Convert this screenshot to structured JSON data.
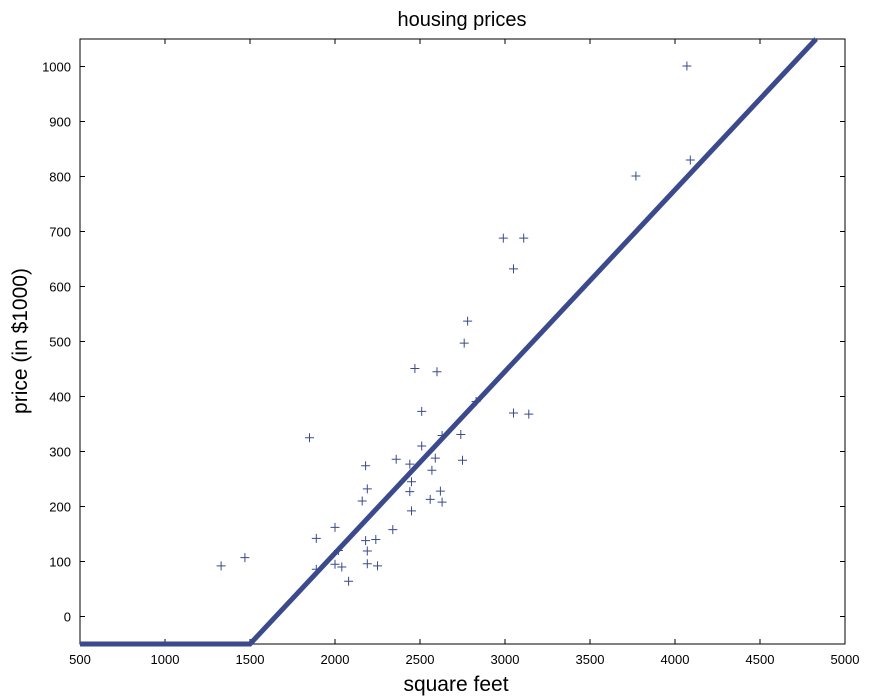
{
  "chart_data": {
    "type": "scatter",
    "title": "housing prices",
    "xlabel": "square feet",
    "ylabel": "price (in $1000)",
    "xlim": [
      500,
      5000
    ],
    "ylim": [
      -50,
      1050
    ],
    "xticks": [
      500,
      1000,
      1500,
      2000,
      2500,
      3000,
      3500,
      4000,
      4500,
      5000
    ],
    "yticks": [
      0,
      100,
      200,
      300,
      400,
      500,
      600,
      700,
      800,
      900,
      1000
    ],
    "grid": false,
    "colors": {
      "series": "#3a4a8c"
    },
    "series": [
      {
        "type": "scatter",
        "marker": "+",
        "points": [
          [
            1330,
            92
          ],
          [
            1470,
            107
          ],
          [
            1850,
            325
          ],
          [
            1890,
            142
          ],
          [
            1890,
            86
          ],
          [
            2000,
            162
          ],
          [
            2000,
            95
          ],
          [
            2020,
            120
          ],
          [
            2040,
            90
          ],
          [
            2080,
            64
          ],
          [
            2160,
            210
          ],
          [
            2180,
            274
          ],
          [
            2190,
            232
          ],
          [
            2180,
            138
          ],
          [
            2190,
            119
          ],
          [
            2190,
            96
          ],
          [
            2240,
            140
          ],
          [
            2250,
            92
          ],
          [
            2340,
            158
          ],
          [
            2360,
            286
          ],
          [
            2440,
            277
          ],
          [
            2440,
            227
          ],
          [
            2450,
            245
          ],
          [
            2450,
            192
          ],
          [
            2470,
            451
          ],
          [
            2510,
            310
          ],
          [
            2510,
            373
          ],
          [
            2560,
            213
          ],
          [
            2570,
            266
          ],
          [
            2590,
            288
          ],
          [
            2600,
            445
          ],
          [
            2620,
            228
          ],
          [
            2630,
            208
          ],
          [
            2630,
            329
          ],
          [
            2740,
            331
          ],
          [
            2750,
            284
          ],
          [
            2760,
            497
          ],
          [
            2780,
            537
          ],
          [
            2830,
            391
          ],
          [
            2990,
            688
          ],
          [
            3050,
            632
          ],
          [
            3050,
            370
          ],
          [
            3110,
            688
          ],
          [
            3140,
            368
          ],
          [
            3770,
            801
          ],
          [
            4070,
            1001
          ],
          [
            4090,
            830
          ]
        ]
      },
      {
        "type": "line",
        "points": [
          [
            500,
            -50
          ],
          [
            1500,
            -50
          ],
          [
            4830,
            1050
          ]
        ]
      }
    ]
  }
}
